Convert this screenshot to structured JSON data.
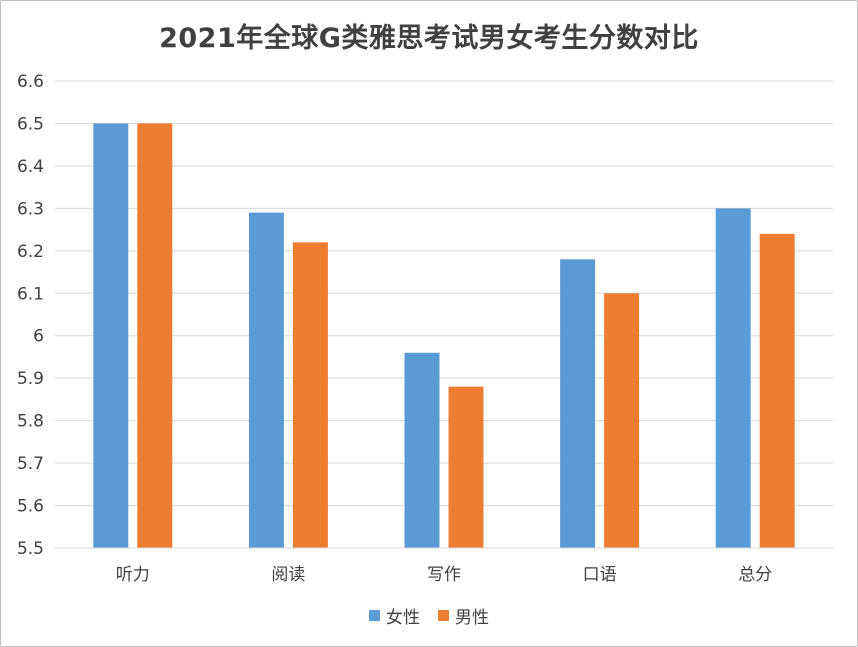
{
  "chart_data": {
    "type": "bar",
    "title": "2021年全球G类雅思考试男女考生分数对比",
    "xlabel": "",
    "ylabel": "",
    "categories": [
      "听力",
      "阅读",
      "写作",
      "口语",
      "总分"
    ],
    "series": [
      {
        "name": "女性",
        "color": "#5b9bd5",
        "values": [
          6.5,
          6.29,
          5.96,
          6.18,
          6.3
        ]
      },
      {
        "name": "男性",
        "color": "#ed7d31",
        "values": [
          6.5,
          6.22,
          5.88,
          6.1,
          6.24
        ]
      }
    ],
    "ylim": [
      5.5,
      6.6
    ],
    "yticks": [
      "5.5",
      "5.6",
      "5.7",
      "5.8",
      "5.9",
      "6",
      "6.1",
      "6.2",
      "6.3",
      "6.4",
      "6.5",
      "6.6"
    ],
    "grid": true,
    "legend_position": "bottom"
  }
}
